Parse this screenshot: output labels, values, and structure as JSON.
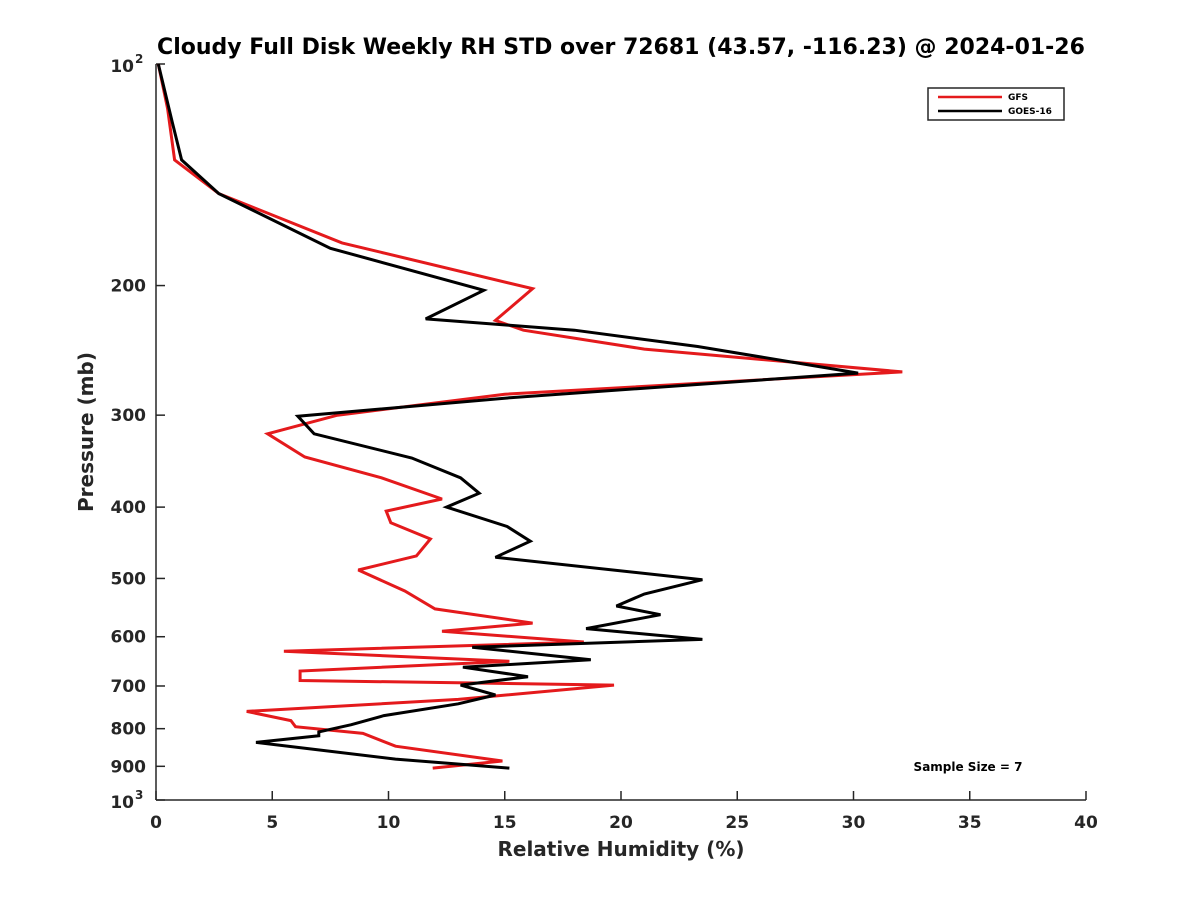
{
  "chart_data": {
    "type": "line",
    "title": "Cloudy Full Disk Weekly RH STD over 72681 (43.57, -116.23) @ 2024-01-26",
    "xlabel": "Relative Humidity (%)",
    "ylabel": "Pressure (mb)",
    "xlim": [
      0,
      40
    ],
    "ylim": [
      100,
      1000
    ],
    "yscale": "log",
    "y_reversed": true,
    "grid": false,
    "legend_position": "top-right",
    "annotation": "Sample Size = 7",
    "x_ticks": [
      "0",
      "5",
      "10",
      "15",
      "20",
      "25",
      "30",
      "35",
      "40"
    ],
    "y_ticks": [
      {
        "value": 100,
        "base": "10",
        "exp": "2"
      },
      {
        "value": 200,
        "label": "200"
      },
      {
        "value": 300,
        "label": "300"
      },
      {
        "value": 400,
        "label": "400"
      },
      {
        "value": 500,
        "label": "500"
      },
      {
        "value": 600,
        "label": "600"
      },
      {
        "value": 700,
        "label": "700"
      },
      {
        "value": 800,
        "label": "800"
      },
      {
        "value": 900,
        "label": "900"
      },
      {
        "value": 1000,
        "base": "10",
        "exp": "3"
      }
    ],
    "series": [
      {
        "name": "GFS",
        "color": "#e41a1c",
        "points": [
          [
            0.1,
            100
          ],
          [
            0.5,
            115
          ],
          [
            0.8,
            135
          ],
          [
            2.7,
            150
          ],
          [
            8,
            175
          ],
          [
            16.2,
            202
          ],
          [
            14.6,
            223
          ],
          [
            15.8,
            230
          ],
          [
            21,
            244
          ],
          [
            32.1,
            262
          ],
          [
            15,
            281
          ],
          [
            7.8,
            300
          ],
          [
            4.8,
            318
          ],
          [
            6.4,
            342
          ],
          [
            9.7,
            365
          ],
          [
            12.3,
            390
          ],
          [
            9.9,
            405
          ],
          [
            10.1,
            420
          ],
          [
            11.8,
            442
          ],
          [
            11.2,
            466
          ],
          [
            8.7,
            487
          ],
          [
            10.7,
            520
          ],
          [
            12,
            550
          ],
          [
            16.2,
            575
          ],
          [
            12.3,
            590
          ],
          [
            18.4,
            610
          ],
          [
            5.5,
            628
          ],
          [
            15.2,
            648
          ],
          [
            6.2,
            668
          ],
          [
            6.2,
            688
          ],
          [
            19.7,
            698
          ],
          [
            13,
            730
          ],
          [
            3.9,
            758
          ],
          [
            5.8,
            780
          ],
          [
            6,
            795
          ],
          [
            8.9,
            812
          ],
          [
            10.3,
            845
          ],
          [
            14.9,
            885
          ],
          [
            11.9,
            905
          ]
        ]
      },
      {
        "name": "GOES-16",
        "color": "#000000",
        "points": [
          [
            0.1,
            100
          ],
          [
            0.7,
            120
          ],
          [
            1.1,
            135
          ],
          [
            2.7,
            150
          ],
          [
            7.5,
            178
          ],
          [
            14.1,
            203
          ],
          [
            11.6,
            222
          ],
          [
            18,
            230
          ],
          [
            23.3,
            242
          ],
          [
            30.2,
            263
          ],
          [
            15.3,
            284
          ],
          [
            6.1,
            301
          ],
          [
            6.8,
            318
          ],
          [
            11,
            343
          ],
          [
            13.1,
            365
          ],
          [
            13.9,
            383
          ],
          [
            12.5,
            400
          ],
          [
            15.1,
            425
          ],
          [
            16.1,
            445
          ],
          [
            14.6,
            468
          ],
          [
            23.5,
            502
          ],
          [
            21,
            525
          ],
          [
            19.8,
            545
          ],
          [
            21.7,
            560
          ],
          [
            18.5,
            585
          ],
          [
            23.5,
            605
          ],
          [
            13.6,
            620
          ],
          [
            18.7,
            645
          ],
          [
            13.2,
            660
          ],
          [
            16,
            680
          ],
          [
            13.1,
            698
          ],
          [
            14.6,
            720
          ],
          [
            13,
            740
          ],
          [
            9.8,
            768
          ],
          [
            8.4,
            790
          ],
          [
            7,
            808
          ],
          [
            7,
            818
          ],
          [
            4.3,
            835
          ],
          [
            10.3,
            880
          ],
          [
            15.2,
            905
          ]
        ]
      }
    ]
  }
}
